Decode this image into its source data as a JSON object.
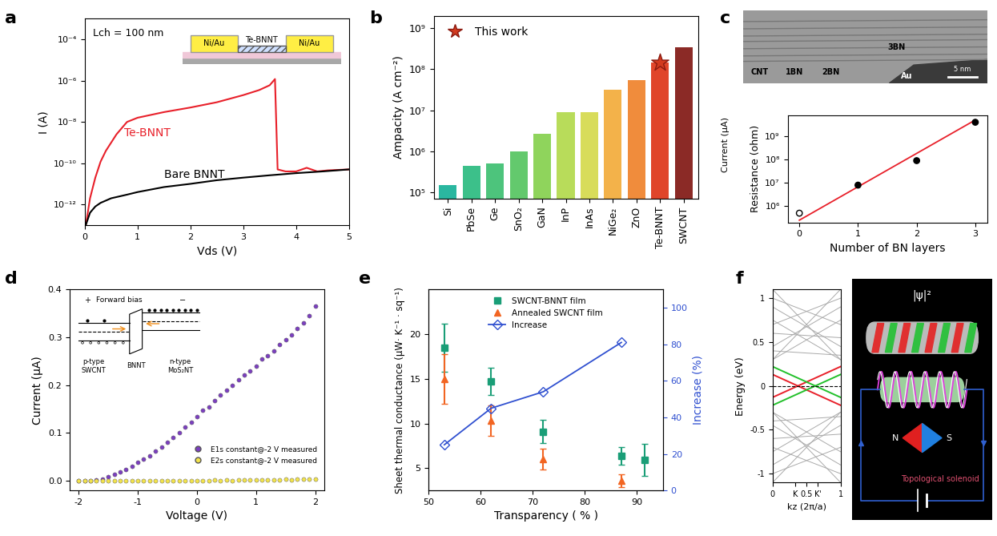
{
  "chart_data": [
    {
      "type": "line",
      "panel_label": "a",
      "x_label": "Vds (V)",
      "y_label": "I (A)",
      "log": "y",
      "xlim": [
        0,
        5
      ],
      "xticks": [
        0,
        1,
        2,
        3,
        4,
        5
      ],
      "ylim": [
        1e-13,
        0.001
      ],
      "yticks": [
        {
          "value": 1e-12,
          "label": "10⁻¹²"
        },
        {
          "value": 1e-10,
          "label": "10⁻¹⁰"
        },
        {
          "value": 1e-08,
          "label": "10⁻⁸"
        },
        {
          "value": 1e-06,
          "label": "10⁻⁶"
        },
        {
          "value": 0.0001,
          "label": "10⁻⁴"
        }
      ],
      "series": [
        {
          "name": "Te-BNNT",
          "color": "#e8202a",
          "x": [
            0.02,
            0.1,
            0.2,
            0.3,
            0.4,
            0.5,
            0.6,
            0.8,
            1.0,
            1.5,
            2.0,
            2.5,
            3.0,
            3.3,
            3.5,
            3.6,
            3.65,
            3.8,
            4.0,
            4.2,
            4.4,
            4.6,
            5.0
          ],
          "values": [
            1e-13,
            2e-12,
            2e-11,
            1.2e-10,
            4e-10,
            1e-09,
            2.5e-09,
            1e-08,
            1.6e-08,
            3e-08,
            5e-08,
            9e-08,
            2e-07,
            3.5e-07,
            6e-07,
            1.2e-06,
            5e-11,
            4e-11,
            4e-11,
            6e-11,
            4e-11,
            4.5e-11,
            5e-11
          ]
        },
        {
          "name": "Bare BNNT",
          "color": "#000000",
          "x": [
            0.02,
            0.1,
            0.2,
            0.3,
            0.5,
            0.8,
            1.0,
            1.5,
            2.0,
            2.5,
            3.0,
            3.5,
            4.0,
            4.5,
            5.0
          ],
          "values": [
            1e-13,
            4e-13,
            8e-13,
            1.2e-12,
            2e-12,
            3e-12,
            4e-12,
            7e-12,
            1e-11,
            1.5e-11,
            2e-11,
            2.6e-11,
            3.3e-11,
            4e-11,
            5e-11
          ]
        }
      ],
      "inset": {
        "title": "Te-BNNT",
        "electrodes": [
          "Ni/Au",
          "Ni/Au"
        ],
        "channel_length": "Lch = 100 nm"
      }
    },
    {
      "type": "bar",
      "panel_label": "b",
      "y_label": "Ampacity (A cm⁻²)",
      "log": "y",
      "categories": [
        "Si",
        "PbSe",
        "Ge",
        "SnO₂",
        "GaN",
        "InP",
        "InAs",
        "NiGe₂",
        "ZnO",
        "Te-BNNT",
        "SWCNT"
      ],
      "values": [
        150000.0,
        430000.0,
        500000.0,
        1000000.0,
        2600000.0,
        9000000.0,
        9000000.0,
        32000000.0,
        55000000.0,
        145000000.0,
        350000000.0
      ],
      "colors": [
        "#2ab7a0",
        "#3cc08a",
        "#4dc47c",
        "#63c96d",
        "#8fd45c",
        "#b8dc5a",
        "#d8dc5a",
        "#f3b24a",
        "#f08c3c",
        "#e0452a",
        "#8b2a26"
      ],
      "ylim": [
        70000.0,
        2000000000.0
      ],
      "yticks": [
        {
          "value": 100000.0,
          "label": "10⁵"
        },
        {
          "value": 1000000.0,
          "label": "10⁶"
        },
        {
          "value": 10000000.0,
          "label": "10⁷"
        },
        {
          "value": 100000000.0,
          "label": "10⁸"
        },
        {
          "value": 1000000000.0,
          "label": "10⁹"
        }
      ],
      "legend": "upper left",
      "markers": [
        {
          "name": "This work",
          "category": "Te-BNNT",
          "marker": "star",
          "color": "#d23a1f"
        }
      ]
    },
    {
      "type": "scatter",
      "panel_label": "c",
      "x_label": "Number of BN layers",
      "y_label": "Resistance (ohm)",
      "log": "y",
      "xlim": [
        -0.2,
        3.2
      ],
      "xticks": [
        0,
        1,
        2,
        3
      ],
      "ylim": [
        200000.0,
        8000000000.0
      ],
      "yticks": [
        {
          "value": 1000000.0,
          "label": "10⁶"
        },
        {
          "value": 10000000.0,
          "label": "10⁷"
        },
        {
          "value": 100000000.0,
          "label": "10⁸"
        },
        {
          "value": 1000000000.0,
          "label": "10⁹"
        }
      ],
      "x": [
        0,
        1,
        2,
        3
      ],
      "values": [
        500000.0,
        8000000.0,
        90000000.0,
        4000000000.0
      ],
      "color": "#000000",
      "fit": {
        "x": [
          0,
          3
        ],
        "values": [
          250000.0,
          5000000000.0
        ],
        "color": "#e8202a"
      },
      "overlay_text": "Current (μA)",
      "image_labels": [
        "CNT",
        "1BN",
        "2BN",
        "3BN",
        "Au"
      ],
      "scale_bar": "5 nm"
    },
    {
      "type": "scatter",
      "panel_label": "d",
      "x_label": "Voltage (V)",
      "y_label": "Current (μA)",
      "xlim": [
        -2.15,
        2.15
      ],
      "xticks": [
        -2,
        -1,
        0,
        1,
        2
      ],
      "ylim": [
        -0.02,
        0.4
      ],
      "yticks": [
        {
          "value": 0,
          "label": "0.0"
        },
        0.1,
        0.2,
        0.3,
        0.4
      ],
      "legend": "lower right",
      "x": [
        -2.0,
        -1.9,
        -1.8,
        -1.7,
        -1.6,
        -1.5,
        -1.4,
        -1.3,
        -1.2,
        -1.1,
        -1.0,
        -0.9,
        -0.8,
        -0.7,
        -0.6,
        -0.5,
        -0.4,
        -0.3,
        -0.2,
        -0.1,
        0.0,
        0.1,
        0.2,
        0.3,
        0.4,
        0.5,
        0.6,
        0.7,
        0.8,
        0.9,
        1.0,
        1.1,
        1.2,
        1.3,
        1.4,
        1.5,
        1.6,
        1.7,
        1.8,
        1.9,
        2.0
      ],
      "series": [
        {
          "name": "E1s constant@-2 V measured",
          "color": "#7b3fbf",
          "values": [
            0.0,
            0.0,
            0.001,
            0.002,
            0.004,
            0.008,
            0.013,
            0.018,
            0.024,
            0.03,
            0.038,
            0.045,
            0.052,
            0.062,
            0.07,
            0.08,
            0.09,
            0.1,
            0.112,
            0.122,
            0.135,
            0.148,
            0.155,
            0.168,
            0.18,
            0.19,
            0.2,
            0.212,
            0.222,
            0.23,
            0.24,
            0.255,
            0.262,
            0.272,
            0.285,
            0.295,
            0.305,
            0.318,
            0.33,
            0.345,
            0.365
          ]
        },
        {
          "name": "E2s constant@-2 V measured",
          "color": "#f2e34c",
          "values": [
            0.0,
            0.001,
            0.0,
            0.001,
            0.001,
            0.0,
            0.001,
            0.001,
            0.001,
            0.0,
            0.001,
            0.001,
            0.001,
            0.001,
            0.001,
            0.001,
            0.001,
            0.001,
            0.001,
            0.001,
            0.001,
            0.001,
            0.001,
            0.002,
            0.001,
            0.002,
            0.001,
            0.002,
            0.002,
            0.002,
            0.002,
            0.002,
            0.002,
            0.002,
            0.002,
            0.003,
            0.002,
            0.003,
            0.003,
            0.003,
            0.003
          ]
        }
      ],
      "inset": {
        "title": "Forward bias",
        "signs": [
          "+",
          "−"
        ],
        "regions": [
          [
            "p-type",
            "SWCNT"
          ],
          [
            "BNNT"
          ],
          [
            "n-type",
            "MoS₂NT"
          ]
        ]
      }
    },
    {
      "type": "scatter",
      "panel_label": "e",
      "x_label": "Transparency ( % )",
      "y_label": "Sheet thermal conductance (μW· K⁻¹ · sq⁻¹)",
      "y2_label": "Increase (%)",
      "xlim": [
        50,
        95
      ],
      "xticks": [
        50,
        60,
        70,
        80,
        90
      ],
      "ylim": [
        2.5,
        25
      ],
      "yticks": [
        5,
        10,
        15,
        20
      ],
      "y2lim": [
        0,
        110
      ],
      "y2ticks": [
        0,
        20,
        40,
        60,
        80,
        100
      ],
      "legend": "upper center",
      "series": [
        {
          "name": "SWCNT-BNNT film",
          "color": "#1a9e77",
          "marker": "square",
          "x": [
            53,
            62,
            72,
            87,
            91.5
          ],
          "values": [
            18.5,
            14.7,
            9.1,
            6.4,
            5.9
          ],
          "errors": [
            2.7,
            1.5,
            1.3,
            1.0,
            1.8
          ]
        },
        {
          "name": "Annealed SWCNT film",
          "color": "#f26522",
          "marker": "triangle",
          "x": [
            53,
            62,
            72,
            87
          ],
          "values": [
            15.0,
            10.3,
            6.0,
            3.6
          ],
          "errors": [
            2.8,
            1.7,
            1.2,
            0.7
          ]
        },
        {
          "name": "Increase",
          "color": "#3050d0",
          "marker": "diamond",
          "type": "line",
          "axis": "y2",
          "x": [
            53,
            62,
            72,
            87
          ],
          "values": [
            25,
            45,
            54,
            81
          ]
        }
      ]
    },
    {
      "type": "line",
      "panel_label": "f",
      "x_label": "kz (2π/a)",
      "y_label": "Energy (eV)",
      "xlim": [
        0,
        1
      ],
      "xticks": [
        0,
        {
          "value": 0.333,
          "label": "K"
        },
        0.5,
        {
          "value": 0.667,
          "label": "K'"
        },
        1
      ],
      "ylim": [
        -1.1,
        1.1
      ],
      "yticks": [
        -1,
        -0.5,
        0,
        0.5,
        1
      ],
      "bands": {
        "color": "#aaaaaa",
        "x": [
          0,
          1
        ],
        "values": [
          [
            -1.1,
            -0.3
          ],
          [
            -0.3,
            -1.1
          ],
          [
            -0.9,
            -0.45
          ],
          [
            -0.45,
            -0.9
          ],
          [
            -0.75,
            -0.3
          ],
          [
            -0.3,
            -0.75
          ],
          [
            -0.6,
            -0.55
          ],
          [
            -1.0,
            -0.7
          ],
          [
            -0.7,
            -1.0
          ],
          [
            -0.4,
            -0.35
          ],
          [
            1.1,
            0.3
          ],
          [
            0.3,
            1.1
          ],
          [
            0.9,
            0.45
          ],
          [
            0.45,
            0.9
          ],
          [
            0.75,
            0.3
          ],
          [
            0.3,
            0.75
          ],
          [
            0.6,
            0.55
          ],
          [
            1.0,
            0.7
          ],
          [
            0.7,
            1.0
          ],
          [
            0.4,
            0.35
          ]
        ]
      },
      "series": [
        {
          "color": "#e8202a",
          "x": [
            0,
            1
          ],
          "values": [
            0.13,
            -0.22
          ]
        },
        {
          "color": "#e8202a",
          "x": [
            0,
            1
          ],
          "values": [
            -0.13,
            0.22
          ]
        },
        {
          "color": "#22c02a",
          "x": [
            0,
            1
          ],
          "values": [
            0.22,
            -0.13
          ]
        },
        {
          "color": "#22c02a",
          "x": [
            0,
            1
          ],
          "values": [
            -0.22,
            0.13
          ]
        }
      ],
      "fermi_level": 0,
      "illustration": {
        "title": "|ψ|²",
        "poles": [
          "N",
          "S"
        ],
        "caption": "Topological solenoid"
      }
    }
  ]
}
